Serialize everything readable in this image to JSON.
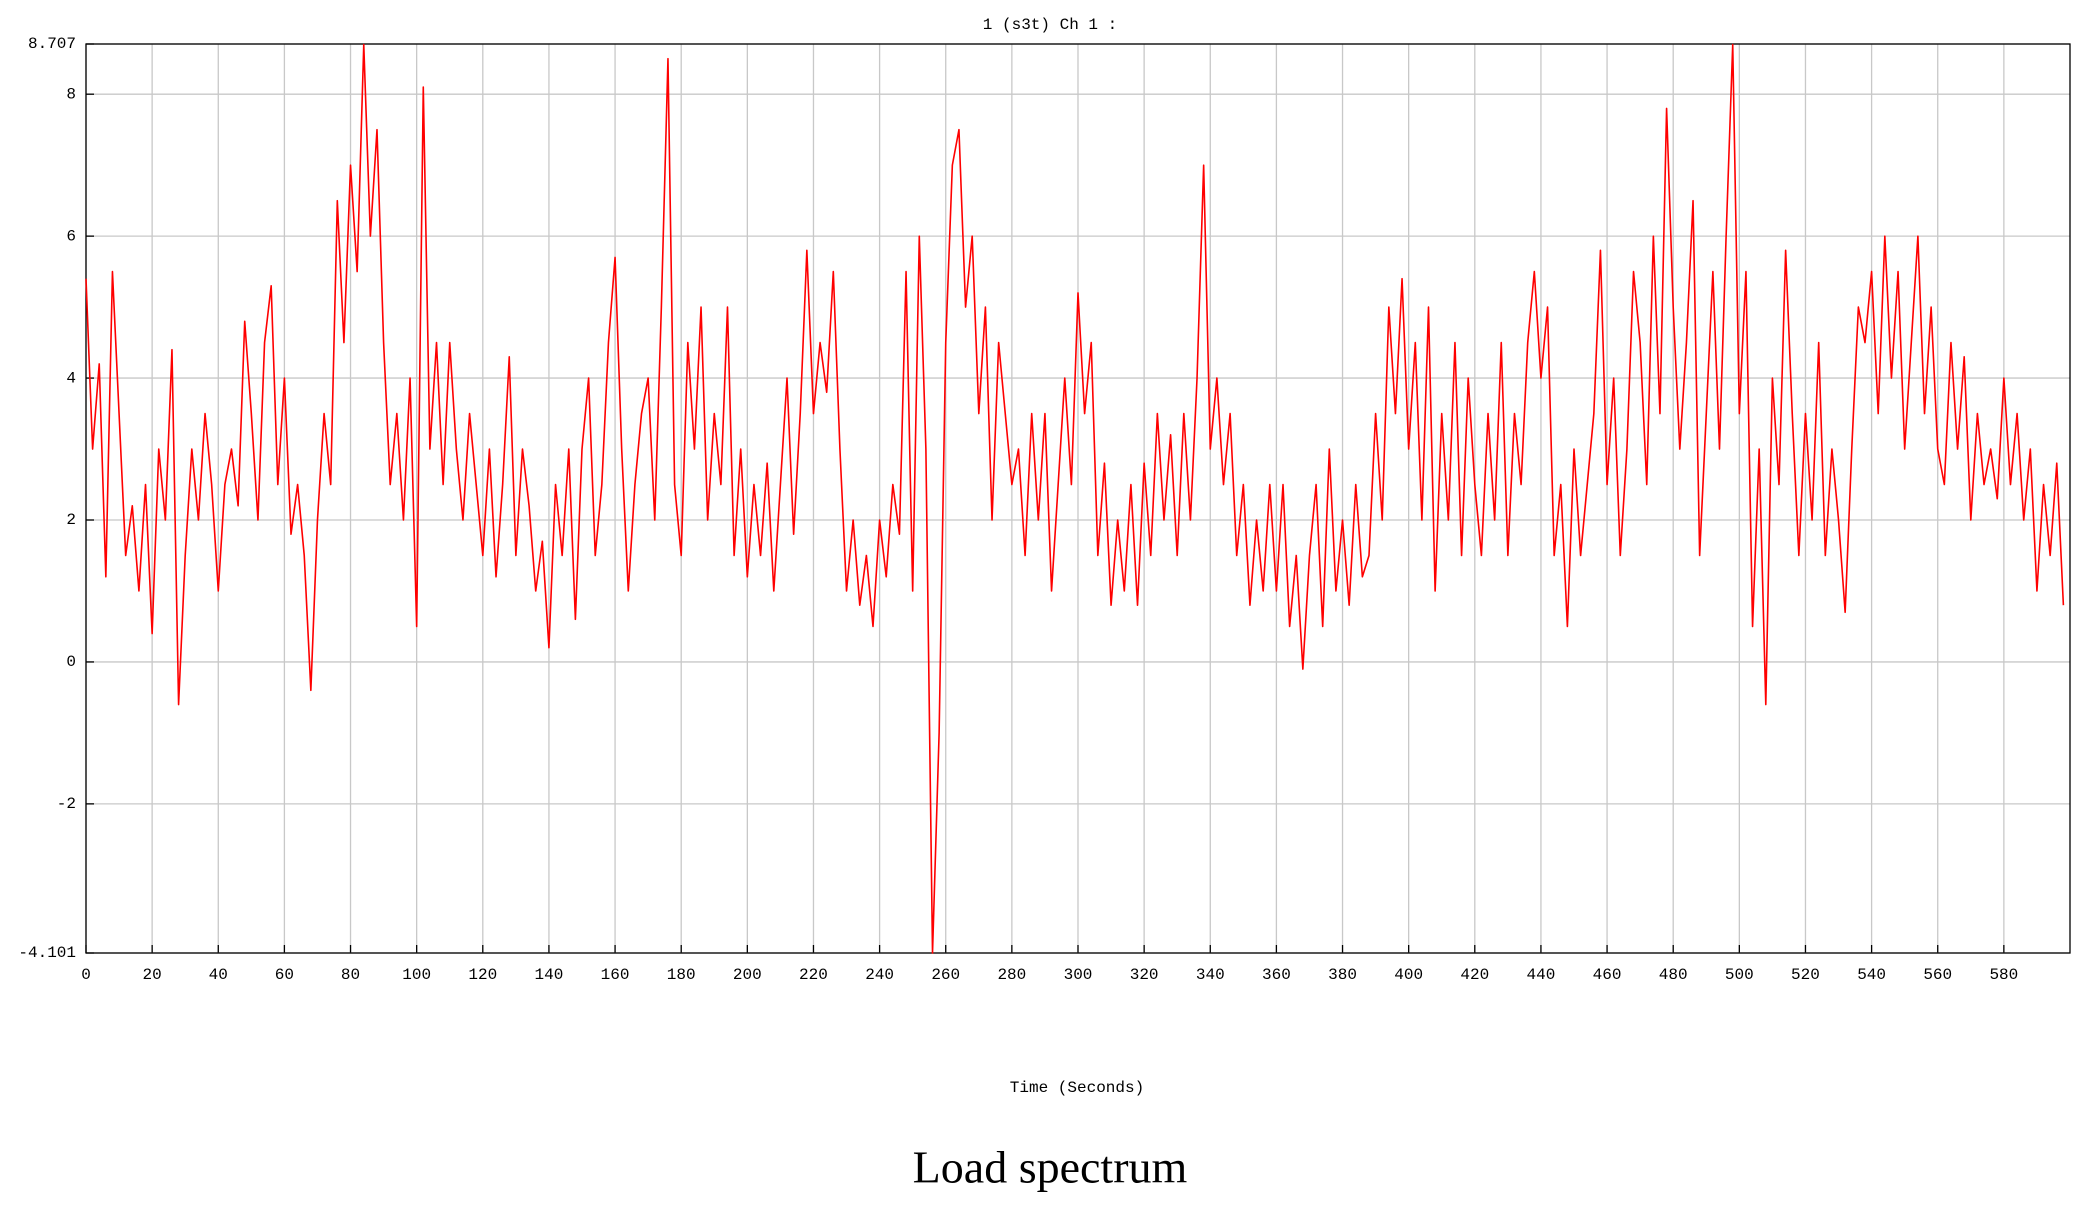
{
  "chart_data": {
    "type": "line",
    "title": "1 (s3t)  Ch 1 :",
    "xlabel": "Time (Seconds)",
    "caption": "Load spectrum",
    "color": "#ff0000",
    "grid": true,
    "xlim": [
      0,
      600
    ],
    "ylim": [
      -4.101,
      8.707
    ],
    "xticks": [
      0,
      20,
      40,
      60,
      80,
      100,
      120,
      140,
      160,
      180,
      200,
      220,
      240,
      260,
      280,
      300,
      320,
      340,
      360,
      380,
      400,
      420,
      440,
      460,
      480,
      500,
      520,
      540,
      560,
      580
    ],
    "yticks": [
      -4.101,
      -2,
      0,
      2,
      4,
      6,
      8,
      8.707
    ],
    "x": [
      0,
      2,
      4,
      6,
      8,
      10,
      12,
      14,
      16,
      18,
      20,
      22,
      24,
      26,
      28,
      30,
      32,
      34,
      36,
      38,
      40,
      42,
      44,
      46,
      48,
      50,
      52,
      54,
      56,
      58,
      60,
      62,
      64,
      66,
      68,
      70,
      72,
      74,
      76,
      78,
      80,
      82,
      84,
      86,
      88,
      90,
      92,
      94,
      96,
      98,
      100,
      102,
      104,
      106,
      108,
      110,
      112,
      114,
      116,
      118,
      120,
      122,
      124,
      126,
      128,
      130,
      132,
      134,
      136,
      138,
      140,
      142,
      144,
      146,
      148,
      150,
      152,
      154,
      156,
      158,
      160,
      162,
      164,
      166,
      168,
      170,
      172,
      174,
      176,
      178,
      180,
      182,
      184,
      186,
      188,
      190,
      192,
      194,
      196,
      198,
      200,
      202,
      204,
      206,
      208,
      210,
      212,
      214,
      216,
      218,
      220,
      222,
      224,
      226,
      228,
      230,
      232,
      234,
      236,
      238,
      240,
      242,
      244,
      246,
      248,
      250,
      252,
      254,
      256,
      258,
      260,
      262,
      264,
      266,
      268,
      270,
      272,
      274,
      276,
      278,
      280,
      282,
      284,
      286,
      288,
      290,
      292,
      294,
      296,
      298,
      300,
      302,
      304,
      306,
      308,
      310,
      312,
      314,
      316,
      318,
      320,
      322,
      324,
      326,
      328,
      330,
      332,
      334,
      336,
      338,
      340,
      342,
      344,
      346,
      348,
      350,
      352,
      354,
      356,
      358,
      360,
      362,
      364,
      366,
      368,
      370,
      372,
      374,
      376,
      378,
      380,
      382,
      384,
      386,
      388,
      390,
      392,
      394,
      396,
      398,
      400,
      402,
      404,
      406,
      408,
      410,
      412,
      414,
      416,
      418,
      420,
      422,
      424,
      426,
      428,
      430,
      432,
      434,
      436,
      438,
      440,
      442,
      444,
      446,
      448,
      450,
      452,
      454,
      456,
      458,
      460,
      462,
      464,
      466,
      468,
      470,
      472,
      474,
      476,
      478,
      480,
      482,
      484,
      486,
      488,
      490,
      492,
      494,
      496,
      498,
      500,
      502,
      504,
      506,
      508,
      510,
      512,
      514,
      516,
      518,
      520,
      522,
      524,
      526,
      528,
      530,
      532,
      534,
      536,
      538,
      540,
      542,
      544,
      546,
      548,
      550,
      552,
      554,
      556,
      558,
      560,
      562,
      564,
      566,
      568,
      570,
      572,
      574,
      576,
      578,
      580,
      582,
      584,
      586,
      588,
      590,
      592,
      594,
      596,
      598
    ],
    "values": [
      5.4,
      3.0,
      4.2,
      1.2,
      5.5,
      3.5,
      1.5,
      2.2,
      1.0,
      2.5,
      0.4,
      3.0,
      2.0,
      4.4,
      -0.6,
      1.5,
      3.0,
      2.0,
      3.5,
      2.5,
      1.0,
      2.5,
      3.0,
      2.2,
      4.8,
      3.5,
      2.0,
      4.5,
      5.3,
      2.5,
      4.0,
      1.8,
      2.5,
      1.5,
      -0.4,
      2.0,
      3.5,
      2.5,
      6.5,
      4.5,
      7.0,
      5.5,
      8.7,
      6.0,
      7.5,
      4.5,
      2.5,
      3.5,
      2.0,
      4.0,
      0.5,
      8.1,
      3.0,
      4.5,
      2.5,
      4.5,
      3.0,
      2.0,
      3.5,
      2.5,
      1.5,
      3.0,
      1.2,
      2.5,
      4.3,
      1.5,
      3.0,
      2.2,
      1.0,
      1.7,
      0.2,
      2.5,
      1.5,
      3.0,
      0.6,
      3.0,
      4.0,
      1.5,
      2.5,
      4.5,
      5.7,
      3.0,
      1.0,
      2.5,
      3.5,
      4.0,
      2.0,
      5.0,
      8.5,
      2.5,
      1.5,
      4.5,
      3.0,
      5.0,
      2.0,
      3.5,
      2.5,
      5.0,
      1.5,
      3.0,
      1.2,
      2.5,
      1.5,
      2.8,
      1.0,
      2.5,
      4.0,
      1.8,
      3.5,
      5.8,
      3.5,
      4.5,
      3.8,
      5.5,
      3.0,
      1.0,
      2.0,
      0.8,
      1.5,
      0.5,
      2.0,
      1.2,
      2.5,
      1.8,
      5.5,
      1.0,
      6.0,
      3.0,
      -4.1,
      -1.0,
      4.5,
      7.0,
      7.5,
      5.0,
      6.0,
      3.5,
      5.0,
      2.0,
      4.5,
      3.5,
      2.5,
      3.0,
      1.5,
      3.5,
      2.0,
      3.5,
      1.0,
      2.5,
      4.0,
      2.5,
      5.2,
      3.5,
      4.5,
      1.5,
      2.8,
      0.8,
      2.0,
      1.0,
      2.5,
      0.8,
      2.8,
      1.5,
      3.5,
      2.0,
      3.2,
      1.5,
      3.5,
      2.0,
      4.0,
      7.0,
      3.0,
      4.0,
      2.5,
      3.5,
      1.5,
      2.5,
      0.8,
      2.0,
      1.0,
      2.5,
      1.0,
      2.5,
      0.5,
      1.5,
      -0.1,
      1.5,
      2.5,
      0.5,
      3.0,
      1.0,
      2.0,
      0.8,
      2.5,
      1.2,
      1.5,
      3.5,
      2.0,
      5.0,
      3.5,
      5.4,
      3.0,
      4.5,
      2.0,
      5.0,
      1.0,
      3.5,
      2.0,
      4.5,
      1.5,
      4.0,
      2.5,
      1.5,
      3.5,
      2.0,
      4.5,
      1.5,
      3.5,
      2.5,
      4.5,
      5.5,
      4.0,
      5.0,
      1.5,
      2.5,
      0.5,
      3.0,
      1.5,
      2.5,
      3.5,
      5.8,
      2.5,
      4.0,
      1.5,
      3.0,
      5.5,
      4.5,
      2.5,
      6.0,
      3.5,
      7.8,
      5.0,
      3.0,
      4.5,
      6.5,
      1.5,
      3.5,
      5.5,
      3.0,
      6.0,
      8.7,
      3.5,
      5.5,
      0.5,
      3.0,
      -0.6,
      4.0,
      2.5,
      5.8,
      3.5,
      1.5,
      3.5,
      2.0,
      4.5,
      1.5,
      3.0,
      2.0,
      0.7,
      3.0,
      5.0,
      4.5,
      5.5,
      3.5,
      6.0,
      4.0,
      5.5,
      3.0,
      4.5,
      6.0,
      3.5,
      5.0,
      3.0,
      2.5,
      4.5,
      3.0,
      4.3,
      2.0,
      3.5,
      2.5,
      3.0,
      2.3,
      4.0,
      2.5,
      3.5,
      2.0,
      3.0,
      1.0,
      2.5,
      1.5,
      2.8,
      0.8
    ]
  }
}
